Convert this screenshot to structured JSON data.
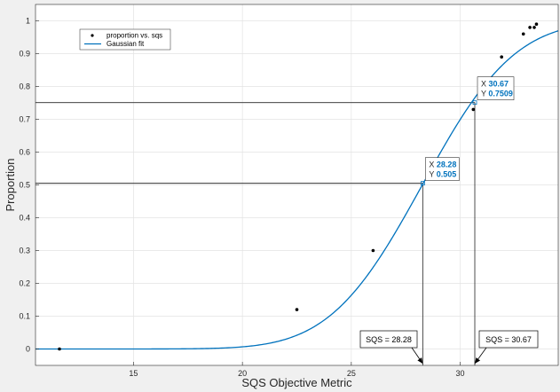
{
  "chart_data": {
    "type": "scatter",
    "xlabel": "SQS Objective Metric",
    "ylabel": "Proportion",
    "xlim": [
      10.5,
      34.5
    ],
    "ylim": [
      -0.05,
      1.05
    ],
    "xticks": [
      15,
      20,
      25,
      30
    ],
    "yticks": [
      0,
      0.1,
      0.2,
      0.3,
      0.4,
      0.5,
      0.6,
      0.7,
      0.8,
      0.9,
      1
    ],
    "grid": true,
    "legend_position": "top-left",
    "series": [
      {
        "name": "proportion vs. sqs",
        "kind": "points",
        "color": "#000000",
        "x": [
          11.6,
          22.5,
          26.0,
          30.6,
          31.9,
          32.9,
          33.2,
          33.4,
          33.5
        ],
        "y": [
          0.0,
          0.12,
          0.3,
          0.73,
          0.89,
          0.96,
          0.98,
          0.98,
          0.99
        ]
      },
      {
        "name": "Gaussian fit",
        "kind": "line",
        "color": "#0072bd",
        "mu": 28.26,
        "sigma": 3.33
      }
    ],
    "datatips": [
      {
        "x_label": "X",
        "x_value": "28.28",
        "y_label": "Y",
        "y_value": "0.505",
        "x": 28.28,
        "y": 0.505
      },
      {
        "x_label": "X",
        "x_value": "30.67",
        "y_label": "Y",
        "y_value": "0.7509",
        "x": 30.67,
        "y": 0.7509
      }
    ],
    "annotations": [
      {
        "text": "SQS = 28.28",
        "x": 28.28
      },
      {
        "text": "SQS = 30.67",
        "x": 30.67
      }
    ]
  }
}
